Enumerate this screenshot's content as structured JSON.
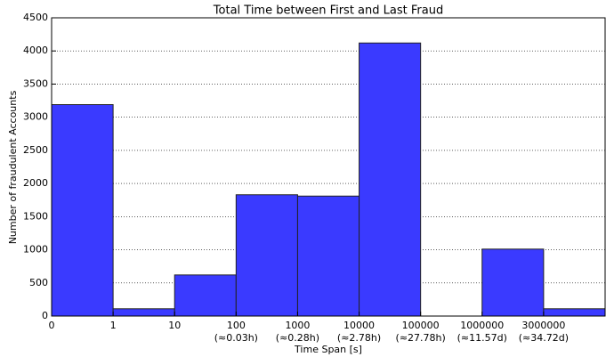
{
  "chart_data": {
    "type": "bar",
    "title": "Total Time between First and Last Fraud",
    "x_label": "Time Span [s]",
    "y_label": "Number of fraudulent Accounts",
    "categories": [
      "0",
      "1",
      "10",
      "100",
      "1000",
      "10000",
      "100000",
      "1000000",
      "3000000"
    ],
    "category_notes": [
      null,
      null,
      null,
      "(≈0.03h)",
      "(≈0.28h)",
      "(≈2.78h)",
      "(≈27.78h)",
      "(≈11.57d)",
      "(≈34.72d)"
    ],
    "values": [
      3190,
      110,
      620,
      1830,
      1810,
      4120,
      0,
      1010,
      110
    ],
    "color": "#3a3aff",
    "ylim": [
      0,
      4500
    ],
    "yticks": [
      0,
      500,
      1000,
      1500,
      2000,
      2500,
      3000,
      3500,
      4000,
      4500
    ],
    "grid": true
  }
}
